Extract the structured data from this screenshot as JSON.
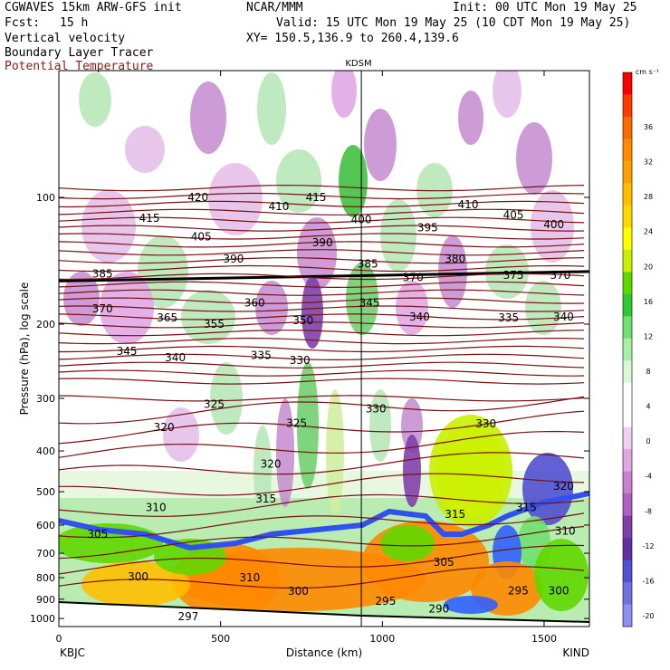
{
  "header": {
    "model": "CGWAVES 15km ARW-GFS init",
    "org": "NCAR/MMM",
    "init": "Init: 00 UTC Mon 19 May 25",
    "fcst_label": "Fcst:",
    "fcst_value": "15 h",
    "valid": "Valid: 15 UTC Mon 19 May 25 (10 CDT Mon 19 May 25)",
    "xy": "XY= 150.5,136.9 to 260.4,139.6",
    "field1": "Vertical velocity",
    "field2": "Boundary Layer Tracer",
    "field3": "Potential Temperature"
  },
  "colors": {
    "theta_contour": "#7a1010",
    "blt_contour": "#000000",
    "field3_text": "#8b1a1a"
  },
  "chart_data": {
    "type": "cross-section",
    "marker_label": "KDSM",
    "marker_x_km": 935,
    "ylabel": "Pressure (hPa), log scale",
    "xlabel": "Distance (km)",
    "x_start_label": "KBJC",
    "x_end_label": "KIND",
    "xlim": [
      0,
      1640
    ],
    "x_ticks": [
      0,
      500,
      1000,
      1500
    ],
    "y_scale": "log",
    "y_ticks": [
      100,
      200,
      300,
      400,
      500,
      600,
      700,
      800,
      900,
      1000
    ],
    "colorbar": {
      "unit": "cm s⁻¹",
      "tick_labels": [
        "36",
        "32",
        "28",
        "24",
        "20",
        "16",
        "12",
        "8",
        "4",
        "0",
        "-4",
        "-8",
        "-12",
        "-16",
        "-20"
      ],
      "colors": [
        "#ff0000",
        "#ff3b00",
        "#ff6a00",
        "#ff8a00",
        "#ffa000",
        "#ffbf00",
        "#ffd800",
        "#ffff00",
        "#c8f000",
        "#60d800",
        "#30c830",
        "#70e070",
        "#a8f0a8",
        "#d8f8d8",
        "#ffffff",
        "#ffffff",
        "#f0d0f0",
        "#e0a8e0",
        "#c880d0",
        "#b060c0",
        "#8040a8",
        "#6030a0",
        "#5050d0",
        "#7070e0",
        "#9090f0"
      ]
    },
    "theta_contour_labels": [
      {
        "label": "420",
        "x_km": 430,
        "p": 100
      },
      {
        "label": "415",
        "x_km": 280,
        "p": 112
      },
      {
        "label": "415",
        "x_km": 795,
        "p": 100
      },
      {
        "label": "410",
        "x_km": 680,
        "p": 105
      },
      {
        "label": "410",
        "x_km": 1265,
        "p": 104
      },
      {
        "label": "405",
        "x_km": 440,
        "p": 124
      },
      {
        "label": "405",
        "x_km": 1405,
        "p": 110
      },
      {
        "label": "400",
        "x_km": 935,
        "p": 113
      },
      {
        "label": "400",
        "x_km": 1530,
        "p": 116
      },
      {
        "label": "395",
        "x_km": 1140,
        "p": 118
      },
      {
        "label": "390",
        "x_km": 540,
        "p": 140
      },
      {
        "label": "390",
        "x_km": 815,
        "p": 128
      },
      {
        "label": "385",
        "x_km": 135,
        "p": 152
      },
      {
        "label": "385",
        "x_km": 955,
        "p": 144
      },
      {
        "label": "380",
        "x_km": 1225,
        "p": 140
      },
      {
        "label": "375",
        "x_km": 1405,
        "p": 153
      },
      {
        "label": "370",
        "x_km": 1550,
        "p": 153
      },
      {
        "label": "370",
        "x_km": 1095,
        "p": 155
      },
      {
        "label": "370",
        "x_km": 135,
        "p": 184
      },
      {
        "label": "365",
        "x_km": 335,
        "p": 193
      },
      {
        "label": "360",
        "x_km": 605,
        "p": 178
      },
      {
        "label": "355",
        "x_km": 480,
        "p": 200
      },
      {
        "label": "350",
        "x_km": 755,
        "p": 196
      },
      {
        "label": "345",
        "x_km": 210,
        "p": 232
      },
      {
        "label": "345",
        "x_km": 960,
        "p": 178
      },
      {
        "label": "340",
        "x_km": 360,
        "p": 240
      },
      {
        "label": "340",
        "x_km": 1115,
        "p": 192
      },
      {
        "label": "340",
        "x_km": 1560,
        "p": 192
      },
      {
        "label": "335",
        "x_km": 625,
        "p": 237
      },
      {
        "label": "335",
        "x_km": 1390,
        "p": 193
      },
      {
        "label": "330",
        "x_km": 745,
        "p": 244
      },
      {
        "label": "330",
        "x_km": 980,
        "p": 318
      },
      {
        "label": "330",
        "x_km": 1320,
        "p": 345
      },
      {
        "label": "325",
        "x_km": 480,
        "p": 310
      },
      {
        "label": "325",
        "x_km": 735,
        "p": 344
      },
      {
        "label": "320",
        "x_km": 325,
        "p": 352
      },
      {
        "label": "320",
        "x_km": 655,
        "p": 430
      },
      {
        "label": "320",
        "x_km": 1560,
        "p": 485
      },
      {
        "label": "315",
        "x_km": 640,
        "p": 520
      },
      {
        "label": "315",
        "x_km": 1225,
        "p": 565
      },
      {
        "label": "315",
        "x_km": 1445,
        "p": 545
      },
      {
        "label": "310",
        "x_km": 300,
        "p": 545
      },
      {
        "label": "310",
        "x_km": 590,
        "p": 800
      },
      {
        "label": "310",
        "x_km": 1565,
        "p": 620
      },
      {
        "label": "305",
        "x_km": 120,
        "p": 630
      },
      {
        "label": "305",
        "x_km": 1190,
        "p": 735
      },
      {
        "label": "300",
        "x_km": 245,
        "p": 795
      },
      {
        "label": "300",
        "x_km": 740,
        "p": 862
      },
      {
        "label": "300",
        "x_km": 1545,
        "p": 860
      },
      {
        "label": "297",
        "x_km": 400,
        "p": 990
      },
      {
        "label": "295",
        "x_km": 1010,
        "p": 910
      },
      {
        "label": "295",
        "x_km": 1420,
        "p": 860
      },
      {
        "label": "290",
        "x_km": 1175,
        "p": 950
      }
    ]
  }
}
